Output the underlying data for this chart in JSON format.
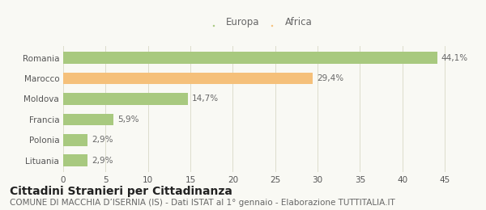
{
  "categories": [
    "Romania",
    "Marocco",
    "Moldova",
    "Francia",
    "Polonia",
    "Lituania"
  ],
  "values": [
    44.1,
    29.4,
    14.7,
    5.9,
    2.9,
    2.9
  ],
  "labels": [
    "44,1%",
    "29,4%",
    "14,7%",
    "5,9%",
    "2,9%",
    "2,9%"
  ],
  "colors": [
    "#a8c97f",
    "#f5c07a",
    "#a8c97f",
    "#a8c97f",
    "#a8c97f",
    "#a8c97f"
  ],
  "legend_labels": [
    "Europa",
    "Africa"
  ],
  "legend_colors": [
    "#a8c97f",
    "#f5c07a"
  ],
  "xlim": [
    0,
    47
  ],
  "xticks": [
    0,
    5,
    10,
    15,
    20,
    25,
    30,
    35,
    40,
    45
  ],
  "title": "Cittadini Stranieri per Cittadinanza",
  "subtitle": "COMUNE DI MACCHIA D’ISERNIA (IS) - Dati ISTAT al 1° gennaio - Elaborazione TUTTITALIA.IT",
  "bg_color": "#f9f9f4",
  "bar_height": 0.58,
  "title_fontsize": 10,
  "subtitle_fontsize": 7.5,
  "label_fontsize": 7.5,
  "tick_fontsize": 7.5,
  "legend_fontsize": 8.5
}
